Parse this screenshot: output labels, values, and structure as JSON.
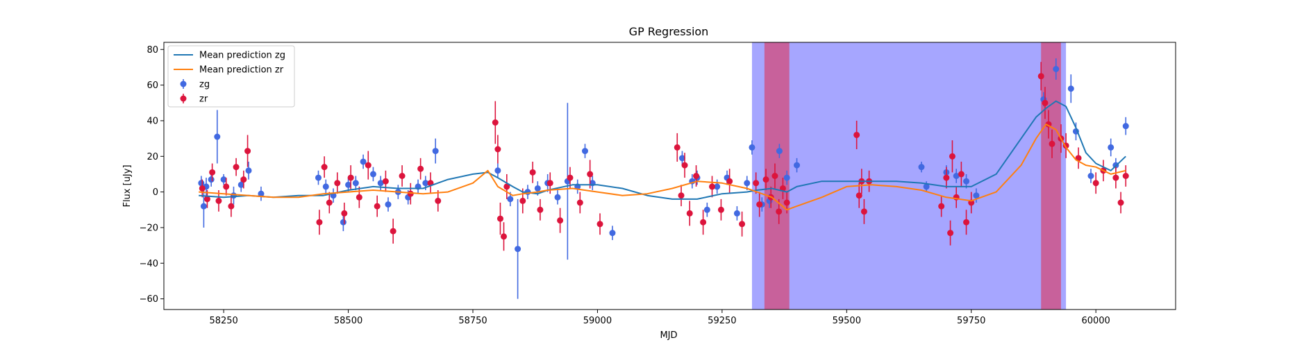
{
  "chart_data": {
    "type": "scatter",
    "title": "GP Regression",
    "xlabel": "MJD",
    "ylabel": "Flux [uJy]",
    "xlim": [
      58130,
      60160
    ],
    "ylim": [
      -66,
      84
    ],
    "xticks": [
      58250,
      58500,
      58750,
      59000,
      59250,
      59500,
      59750,
      60000
    ],
    "yticks": [
      -60,
      -40,
      -20,
      0,
      20,
      40,
      60,
      80
    ],
    "grid": false,
    "legend": {
      "position": "top-left",
      "entries": [
        {
          "label": "Mean prediction zg",
          "kind": "line",
          "color": "#1f77b4"
        },
        {
          "label": "Mean prediction zr",
          "kind": "line",
          "color": "#ff7f0e"
        },
        {
          "label": "zg",
          "kind": "errorbar",
          "color": "#4169e1"
        },
        {
          "label": "zr",
          "kind": "errorbar",
          "color": "#dc143c"
        }
      ]
    },
    "spans": [
      {
        "x0": 59310,
        "x1": 59940,
        "color": "#a6a6ff"
      },
      {
        "x0": 59335,
        "x1": 59385,
        "color": "#c8619b"
      },
      {
        "x0": 59890,
        "x1": 59930,
        "color": "#c8619b"
      }
    ],
    "series": [
      {
        "name": "Mean prediction zg",
        "kind": "line",
        "color": "#1f77b4",
        "x": [
          58200,
          58250,
          58300,
          58350,
          58400,
          58450,
          58500,
          58550,
          58600,
          58650,
          58700,
          58750,
          58780,
          58800,
          58830,
          58850,
          58880,
          58900,
          58950,
          59000,
          59050,
          59100,
          59150,
          59200,
          59250,
          59300,
          59320,
          59350,
          59380,
          59400,
          59450,
          59500,
          59550,
          59600,
          59650,
          59700,
          59750,
          59800,
          59850,
          59880,
          59900,
          59920,
          59940,
          59960,
          59980,
          60000,
          60030,
          60060
        ],
        "y": [
          -2,
          -3,
          -2,
          -3,
          -2,
          -2,
          1,
          3,
          2,
          2,
          7,
          10,
          11,
          8,
          3,
          0,
          -1,
          1,
          4,
          4,
          2,
          -2,
          -4,
          -4,
          -1,
          0,
          1,
          2,
          0,
          3,
          6,
          6,
          6,
          6,
          5,
          3,
          3,
          10,
          30,
          42,
          47,
          51,
          48,
          36,
          22,
          16,
          12,
          20
        ]
      },
      {
        "name": "Mean prediction zr",
        "kind": "line",
        "color": "#ff7f0e",
        "x": [
          58200,
          58250,
          58300,
          58350,
          58400,
          58450,
          58500,
          58550,
          58600,
          58650,
          58700,
          58750,
          58780,
          58800,
          58830,
          58850,
          58880,
          58900,
          58950,
          59000,
          59050,
          59100,
          59150,
          59200,
          59250,
          59300,
          59320,
          59350,
          59380,
          59400,
          59450,
          59500,
          59550,
          59600,
          59650,
          59700,
          59750,
          59800,
          59850,
          59880,
          59900,
          59920,
          59940,
          59960,
          59980,
          60000,
          60030,
          60060
        ],
        "y": [
          0,
          -1,
          -2,
          -3,
          -3,
          -1,
          0,
          1,
          0,
          -1,
          0,
          5,
          12,
          3,
          -2,
          -1,
          0,
          1,
          2,
          0,
          -2,
          -1,
          2,
          6,
          5,
          2,
          0,
          -3,
          -10,
          -8,
          -3,
          3,
          4,
          3,
          1,
          -3,
          -5,
          0,
          15,
          30,
          38,
          35,
          25,
          18,
          15,
          14,
          10,
          12
        ]
      },
      {
        "name": "zg",
        "kind": "errorbar",
        "color": "#4169e1",
        "x": [
          58205,
          58210,
          58215,
          58225,
          58237,
          58250,
          58270,
          58285,
          58300,
          58325,
          58440,
          58455,
          58470,
          58490,
          58500,
          58515,
          58530,
          58550,
          58565,
          58580,
          58600,
          58620,
          58640,
          58655,
          58675,
          58800,
          58825,
          58840,
          58860,
          58880,
          58900,
          58920,
          58940,
          58960,
          58975,
          58990,
          59030,
          59170,
          59190,
          59200,
          59220,
          59240,
          59260,
          59280,
          59300,
          59310,
          59330,
          59345,
          59365,
          59380,
          59400,
          59650,
          59660,
          59700,
          59720,
          59740,
          59760,
          59895,
          59920,
          59950,
          59960,
          59990,
          60030,
          60040,
          60060
        ],
        "y": [
          5,
          -8,
          3,
          7,
          31,
          7,
          -2,
          4,
          12,
          -1,
          8,
          3,
          -2,
          -17,
          4,
          5,
          17,
          10,
          5,
          -7,
          0,
          -3,
          3,
          5,
          23,
          12,
          -4,
          -32,
          0,
          2,
          5,
          -3,
          6,
          3,
          23,
          5,
          -23,
          19,
          6,
          8,
          -10,
          3,
          8,
          -12,
          5,
          25,
          -7,
          -5,
          23,
          8,
          15,
          14,
          3,
          11,
          9,
          6,
          -2,
          52,
          69,
          58,
          34,
          9,
          25,
          15,
          37
        ],
        "err": [
          4,
          12,
          5,
          4,
          15,
          3,
          5,
          4,
          5,
          4,
          4,
          4,
          4,
          5,
          4,
          4,
          4,
          4,
          4,
          4,
          4,
          4,
          4,
          4,
          7,
          4,
          4,
          28,
          4,
          4,
          5,
          4,
          44,
          4,
          4,
          4,
          4,
          4,
          4,
          4,
          4,
          4,
          4,
          4,
          4,
          4,
          4,
          4,
          4,
          4,
          4,
          3,
          3,
          4,
          4,
          4,
          4,
          4,
          6,
          8,
          5,
          4,
          5,
          4,
          5
        ]
      },
      {
        "name": "zr",
        "kind": "errorbar",
        "color": "#dc143c",
        "x": [
          58207,
          58217,
          58227,
          58240,
          58255,
          58265,
          58275,
          58290,
          58298,
          58442,
          58452,
          58462,
          58478,
          58492,
          58505,
          58522,
          58540,
          58558,
          58575,
          58590,
          58608,
          58625,
          58645,
          58665,
          58680,
          58795,
          58800,
          58805,
          58812,
          58818,
          58850,
          58870,
          58885,
          58905,
          58925,
          58945,
          58965,
          58985,
          59005,
          59160,
          59168,
          59175,
          59185,
          59198,
          59212,
          59230,
          59248,
          59265,
          59290,
          59318,
          59325,
          59338,
          59348,
          59356,
          59364,
          59372,
          59380,
          59520,
          59525,
          59530,
          59535,
          59545,
          59690,
          59700,
          59708,
          59712,
          59720,
          59730,
          59740,
          59750,
          59890,
          59898,
          59905,
          59912,
          59930,
          59940,
          59965,
          60000,
          60015,
          60040,
          60050,
          60060
        ],
        "y": [
          2,
          -4,
          11,
          -5,
          3,
          -8,
          14,
          7,
          23,
          -17,
          14,
          -6,
          5,
          -12,
          8,
          -3,
          15,
          -8,
          6,
          -22,
          9,
          -1,
          13,
          5,
          -5,
          39,
          24,
          -15,
          -25,
          3,
          -5,
          11,
          -10,
          5,
          -16,
          8,
          -6,
          10,
          -18,
          25,
          -2,
          15,
          -12,
          9,
          -17,
          3,
          -10,
          6,
          -18,
          5,
          -7,
          7,
          -3,
          9,
          -11,
          2,
          -6,
          32,
          -2,
          6,
          -11,
          6,
          -8,
          8,
          -23,
          20,
          -3,
          10,
          -17,
          -6,
          65,
          50,
          38,
          27,
          30,
          26,
          19,
          5,
          12,
          8,
          -6,
          9
        ],
        "err": [
          5,
          5,
          5,
          6,
          5,
          6,
          5,
          5,
          9,
          7,
          6,
          6,
          6,
          6,
          7,
          6,
          8,
          6,
          6,
          7,
          6,
          6,
          6,
          6,
          6,
          12,
          8,
          9,
          8,
          7,
          7,
          6,
          6,
          6,
          7,
          6,
          6,
          8,
          6,
          8,
          6,
          7,
          7,
          6,
          7,
          6,
          6,
          7,
          7,
          6,
          7,
          6,
          6,
          7,
          7,
          6,
          6,
          8,
          7,
          7,
          7,
          6,
          6,
          6,
          7,
          9,
          6,
          7,
          7,
          6,
          8,
          9,
          8,
          8,
          8,
          7,
          6,
          6,
          6,
          6,
          6,
          6
        ]
      }
    ]
  }
}
